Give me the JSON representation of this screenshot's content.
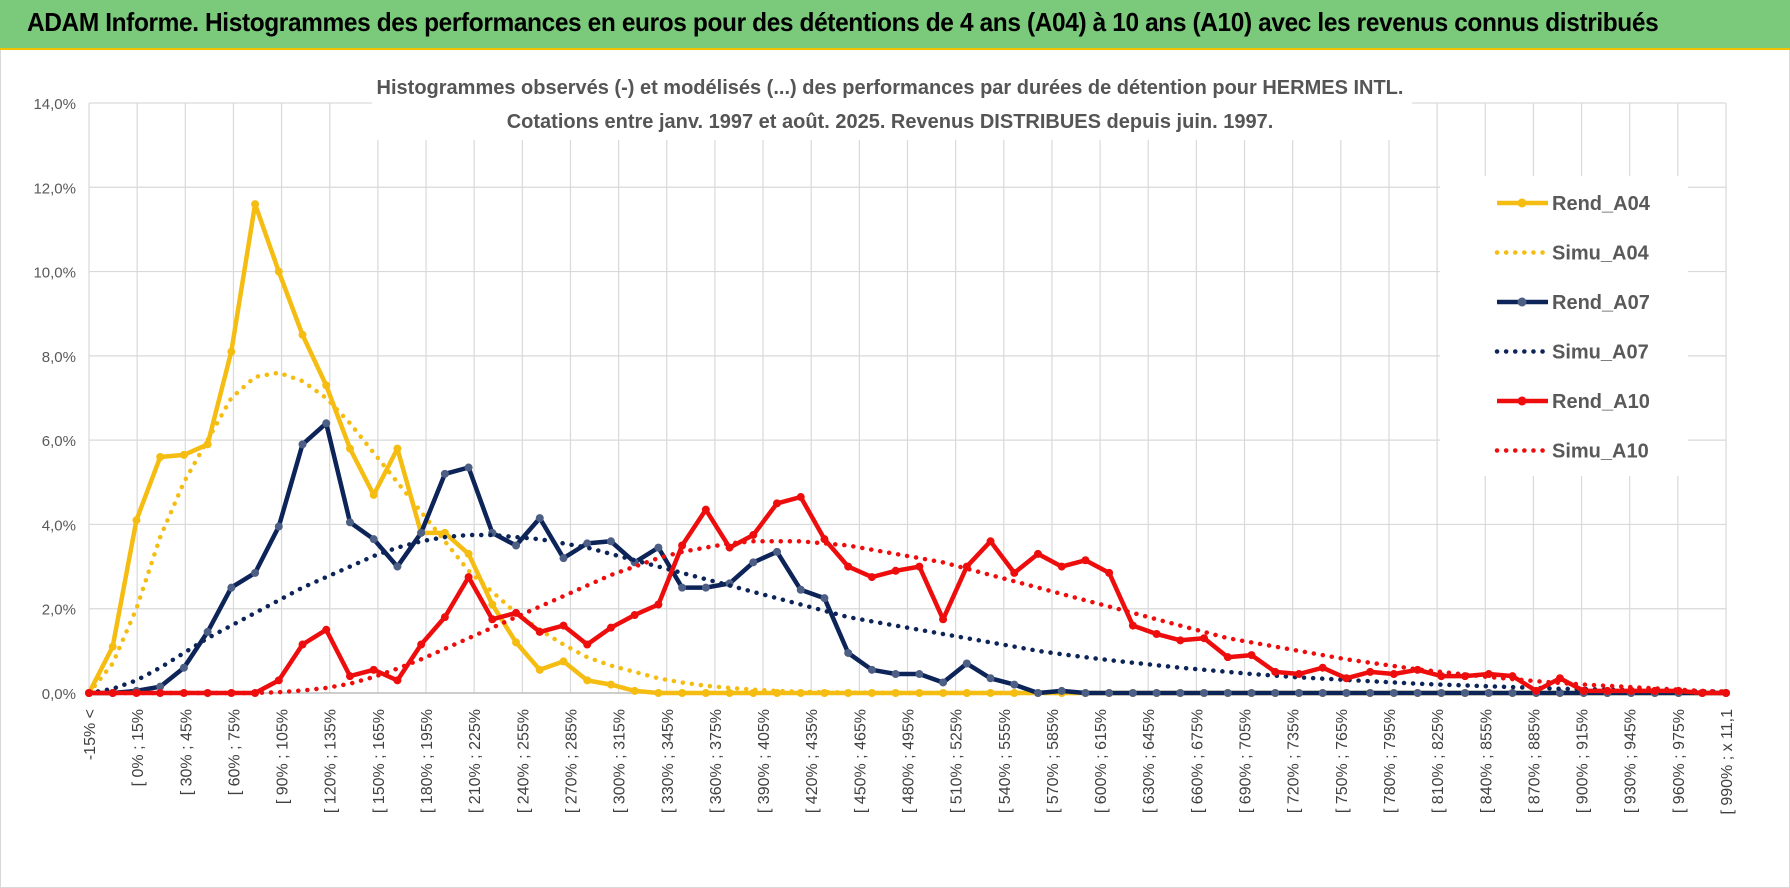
{
  "header": {
    "title": "ADAM Informe. Histogrammes des performances en euros pour des détentions de 4 ans (A04) à 10 ans (A10) avec les revenus connus distribués"
  },
  "chart_data": {
    "type": "line",
    "title_line1": "Histogrammes observés (-) et modélisés (...) des performances par durées de détention pour HERMES INTL.",
    "title_line2": "Cotations entre janv. 1997 et août. 2025. Revenus DISTRIBUES depuis juin. 1997.",
    "legend_position": "right",
    "grid": true,
    "ylim": [
      0,
      14
    ],
    "y_ticks": [
      "0,0%",
      "2,0%",
      "4,0%",
      "6,0%",
      "8,0%",
      "10,0%",
      "12,0%",
      "14,0%"
    ],
    "x_labels": [
      "-15% <",
      "[ 0% ; 15%",
      "[ 30% ; 45%",
      "[ 60% ; 75%",
      "[ 90% ; 105%",
      "[ 120% ; 135%",
      "[ 150% ; 165%",
      "[ 180% ; 195%",
      "[ 210% ; 225%",
      "[ 240% ; 255%",
      "[ 270% ; 285%",
      "[ 300% ; 315%",
      "[ 330% ; 345%",
      "[ 360% ; 375%",
      "[ 390% ; 405%",
      "[ 420% ; 435%",
      "[ 450% ; 465%",
      "[ 480% ; 495%",
      "[ 510% ; 525%",
      "[ 540% ; 555%",
      "[ 570% ; 585%",
      "[ 600% ; 615%",
      "[ 630% ; 645%",
      "[ 660% ; 675%",
      "[ 690% ; 705%",
      "[ 720% ; 735%",
      "[ 750% ; 765%",
      "[ 780% ; 795%",
      "[ 810% ; 825%",
      "[ 840% ; 855%",
      "[ 870% ; 885%",
      "[ 900% ; 915%",
      "[ 930% ; 945%",
      "[ 960% ; 975%",
      "[ 990% ; x 11,1"
    ],
    "series": [
      {
        "name": "Rend_A04",
        "color": "#f5bd12",
        "style": "solid",
        "values": [
          0,
          1.1,
          4.1,
          5.6,
          5.65,
          5.9,
          8.1,
          11.6,
          10.0,
          8.5,
          7.3,
          5.8,
          4.7,
          5.8,
          3.8,
          3.8,
          3.3,
          2.1,
          1.2,
          0.55,
          0.75,
          0.3,
          0.2,
          0.05,
          0,
          0,
          0,
          0,
          0,
          0,
          0,
          0,
          0,
          0,
          0,
          0,
          0,
          0,
          0,
          0,
          0,
          0,
          0,
          0,
          0,
          0,
          0,
          0,
          0,
          0,
          0,
          0,
          0,
          0,
          0,
          0,
          0,
          0,
          0,
          0,
          0,
          0,
          0,
          0,
          0,
          0,
          0,
          0,
          0,
          0
        ]
      },
      {
        "name": "Simu_A04",
        "color": "#f5bd12",
        "style": "dotted",
        "values": [
          0,
          0.7,
          2.0,
          3.7,
          5.0,
          6.0,
          7.0,
          7.5,
          7.6,
          7.4,
          7.0,
          6.4,
          5.7,
          5.0,
          4.3,
          3.6,
          2.9,
          2.4,
          1.9,
          1.5,
          1.15,
          0.85,
          0.65,
          0.5,
          0.35,
          0.25,
          0.17,
          0.12,
          0.08,
          0.05,
          0.03,
          0.02,
          0.01,
          0.01,
          0,
          0,
          0,
          0,
          0,
          0,
          0,
          0,
          0,
          0,
          0,
          0,
          0,
          0,
          0,
          0,
          0,
          0,
          0,
          0,
          0,
          0,
          0,
          0,
          0,
          0,
          0,
          0,
          0,
          0,
          0,
          0,
          0,
          0,
          0,
          0
        ]
      },
      {
        "name": "Rend_A07",
        "color": "#0d2459",
        "style": "solid",
        "values": [
          0,
          0,
          0.05,
          0.15,
          0.6,
          1.45,
          2.5,
          2.85,
          3.95,
          5.9,
          6.4,
          4.05,
          3.65,
          3.0,
          3.8,
          5.2,
          5.35,
          3.8,
          3.5,
          4.15,
          3.2,
          3.55,
          3.6,
          3.1,
          3.45,
          2.5,
          2.5,
          2.6,
          3.1,
          3.35,
          2.45,
          2.25,
          0.95,
          0.55,
          0.45,
          0.45,
          0.25,
          0.7,
          0.35,
          0.2,
          0,
          0.05,
          0,
          0,
          0,
          0,
          0,
          0,
          0,
          0,
          0,
          0,
          0,
          0,
          0,
          0,
          0,
          0,
          0,
          0,
          0,
          0,
          0,
          0,
          0,
          0,
          0,
          0,
          0,
          0
        ]
      },
      {
        "name": "Simu_A07",
        "color": "#0d2459",
        "style": "dotted",
        "values": [
          0,
          0.1,
          0.3,
          0.6,
          0.95,
          1.3,
          1.6,
          1.9,
          2.2,
          2.5,
          2.75,
          3.0,
          3.25,
          3.45,
          3.6,
          3.7,
          3.75,
          3.75,
          3.7,
          3.65,
          3.55,
          3.45,
          3.3,
          3.15,
          3.0,
          2.85,
          2.7,
          2.55,
          2.4,
          2.25,
          2.1,
          1.95,
          1.8,
          1.7,
          1.6,
          1.5,
          1.4,
          1.3,
          1.2,
          1.1,
          1.0,
          0.92,
          0.85,
          0.78,
          0.72,
          0.66,
          0.6,
          0.55,
          0.5,
          0.45,
          0.41,
          0.37,
          0.34,
          0.31,
          0.28,
          0.25,
          0.22,
          0.2,
          0.18,
          0.16,
          0.14,
          0.12,
          0.1,
          0.09,
          0.08,
          0.07,
          0.06,
          0.05,
          0.04,
          0.03
        ]
      },
      {
        "name": "Rend_A10",
        "color": "#ee0d0d",
        "style": "solid",
        "values": [
          0,
          0,
          0,
          0,
          0,
          0,
          0,
          0,
          0.3,
          1.15,
          1.5,
          0.4,
          0.55,
          0.3,
          1.15,
          1.8,
          2.75,
          1.75,
          1.9,
          1.45,
          1.6,
          1.15,
          1.55,
          1.85,
          2.1,
          3.5,
          4.35,
          3.45,
          3.75,
          4.5,
          4.65,
          3.65,
          3.0,
          2.75,
          2.9,
          3.0,
          1.75,
          3.0,
          3.6,
          2.85,
          3.3,
          3.0,
          3.15,
          2.85,
          1.6,
          1.4,
          1.25,
          1.3,
          0.85,
          0.9,
          0.5,
          0.45,
          0.6,
          0.35,
          0.5,
          0.45,
          0.55,
          0.4,
          0.4,
          0.45,
          0.4,
          0.05,
          0.35,
          0.05,
          0.05,
          0.05,
          0.05,
          0.05,
          0,
          0
        ]
      },
      {
        "name": "Simu_A10",
        "color": "#ee0d0d",
        "style": "dotted",
        "values": [
          0,
          0,
          0,
          0,
          0,
          0,
          0,
          0,
          0.02,
          0.06,
          0.12,
          0.22,
          0.38,
          0.58,
          0.8,
          1.05,
          1.3,
          1.55,
          1.8,
          2.05,
          2.3,
          2.55,
          2.8,
          3.0,
          3.2,
          3.35,
          3.45,
          3.55,
          3.6,
          3.6,
          3.6,
          3.55,
          3.5,
          3.4,
          3.3,
          3.2,
          3.1,
          2.95,
          2.8,
          2.65,
          2.5,
          2.35,
          2.2,
          2.05,
          1.9,
          1.75,
          1.6,
          1.45,
          1.3,
          1.2,
          1.1,
          1.0,
          0.9,
          0.8,
          0.72,
          0.64,
          0.56,
          0.5,
          0.44,
          0.38,
          0.33,
          0.28,
          0.24,
          0.2,
          0.17,
          0.14,
          0.11,
          0.08,
          0.05,
          0.03
        ]
      }
    ]
  }
}
